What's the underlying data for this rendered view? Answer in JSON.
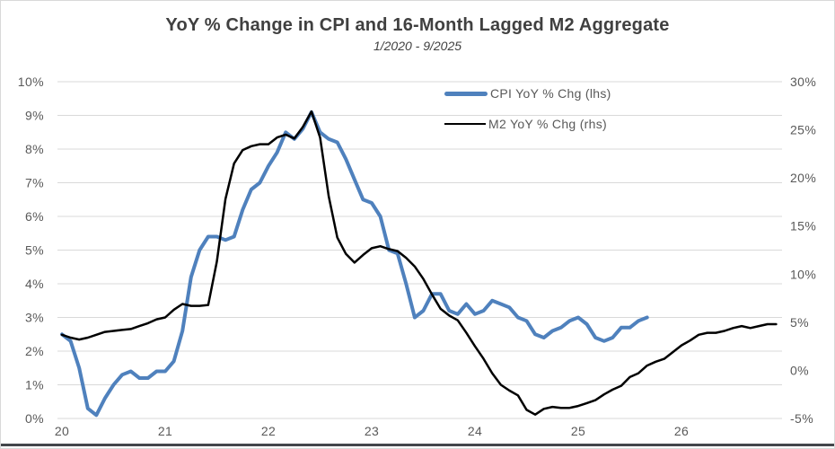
{
  "chart_data": {
    "type": "line",
    "title": "YoY % Change in CPI and 16-Month Lagged M2 Aggregate",
    "subtitle": "1/2020 - 9/2025",
    "grid": "horizontal",
    "legend_position": "top-center",
    "x_axis": {
      "tick_labels": [
        "20",
        "21",
        "22",
        "23",
        "24",
        "25",
        "26"
      ],
      "start_month": "1/2020",
      "frequency": "monthly",
      "months_per_tick": 12
    },
    "left_axis": {
      "min": 0,
      "max": 10,
      "tick_labels": [
        "10%",
        "9%",
        "8%",
        "7%",
        "6%",
        "5%",
        "4%",
        "3%",
        "2%",
        "1%",
        "0%"
      ]
    },
    "right_axis": {
      "min": -5,
      "max": 30,
      "tick_labels": [
        "30%",
        "25%",
        "20%",
        "15%",
        "10%",
        "5%",
        "0%",
        "-5%"
      ]
    },
    "series": [
      {
        "id": "cpi-line",
        "name": "CPI YoY % Chg (lhs)",
        "axis": "left",
        "color": "#4F81BD",
        "stroke_width": 4,
        "start": "1/2020",
        "end": "9/2025",
        "values": [
          2.5,
          2.3,
          1.5,
          0.3,
          0.1,
          0.6,
          1.0,
          1.3,
          1.4,
          1.2,
          1.2,
          1.4,
          1.4,
          1.7,
          2.6,
          4.2,
          5.0,
          5.4,
          5.4,
          5.3,
          5.4,
          6.2,
          6.8,
          7.0,
          7.5,
          7.9,
          8.5,
          8.3,
          8.6,
          9.1,
          8.5,
          8.3,
          8.2,
          7.7,
          7.1,
          6.5,
          6.4,
          6.0,
          5.0,
          4.9,
          4.0,
          3.0,
          3.2,
          3.7,
          3.7,
          3.2,
          3.1,
          3.4,
          3.1,
          3.2,
          3.5,
          3.4,
          3.3,
          3.0,
          2.9,
          2.5,
          2.4,
          2.6,
          2.7,
          2.9,
          3.0,
          2.8,
          2.4,
          2.3,
          2.4,
          2.7,
          2.7,
          2.9,
          3.0
        ]
      },
      {
        "id": "m2-line",
        "name": "M2 YoY % Chg (rhs)",
        "axis": "right",
        "color": "#000000",
        "stroke_width": 2.5,
        "start": "1/2020",
        "end": "12/2026",
        "values": [
          3.7,
          3.4,
          3.2,
          3.4,
          3.7,
          4.0,
          4.1,
          4.2,
          4.3,
          4.6,
          4.9,
          5.3,
          5.5,
          6.3,
          6.9,
          6.7,
          6.7,
          6.8,
          11.3,
          17.8,
          21.5,
          22.9,
          23.3,
          23.5,
          23.5,
          24.2,
          24.5,
          24.1,
          25.3,
          26.9,
          24.2,
          18.1,
          13.8,
          12.1,
          11.2,
          12.0,
          12.7,
          12.9,
          12.6,
          12.4,
          11.7,
          10.8,
          9.5,
          7.9,
          6.4,
          5.7,
          5.2,
          3.9,
          2.5,
          1.2,
          -0.3,
          -1.5,
          -2.1,
          -2.6,
          -4.1,
          -4.6,
          -4.0,
          -3.8,
          -3.9,
          -3.9,
          -3.7,
          -3.4,
          -3.1,
          -2.5,
          -2.0,
          -1.6,
          -0.7,
          -0.3,
          0.5,
          0.9,
          1.2,
          1.9,
          2.6,
          3.1,
          3.7,
          3.9,
          3.9,
          4.1,
          4.4,
          4.6,
          4.4,
          4.6,
          4.8,
          4.8
        ]
      }
    ],
    "colors": {
      "grid": "#d9d9d9",
      "tick_text": "#595959",
      "title_text": "#404040",
      "border": "#d9d9d9",
      "bottom_bar": "#43464b",
      "background": "#ffffff"
    }
  }
}
